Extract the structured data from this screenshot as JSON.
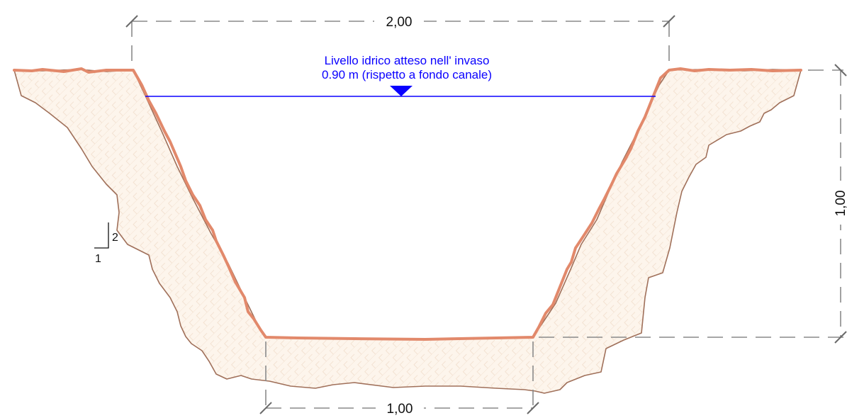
{
  "dimensions": {
    "top_width": "2,00",
    "bottom_width": "1,00",
    "depth": "1,00"
  },
  "water_level": {
    "line1": "Livello idrico atteso nell' invaso",
    "line2": "0.90 m (rispetto a fondo canale)",
    "color": "#0a00ff"
  },
  "slope": {
    "rise": "2",
    "run": "1"
  },
  "colors": {
    "ground_fill": "#fdf5ec",
    "ground_outline": "#a0705a",
    "channel_edge": "#e2896b",
    "dimension": "#8a8a8a"
  }
}
